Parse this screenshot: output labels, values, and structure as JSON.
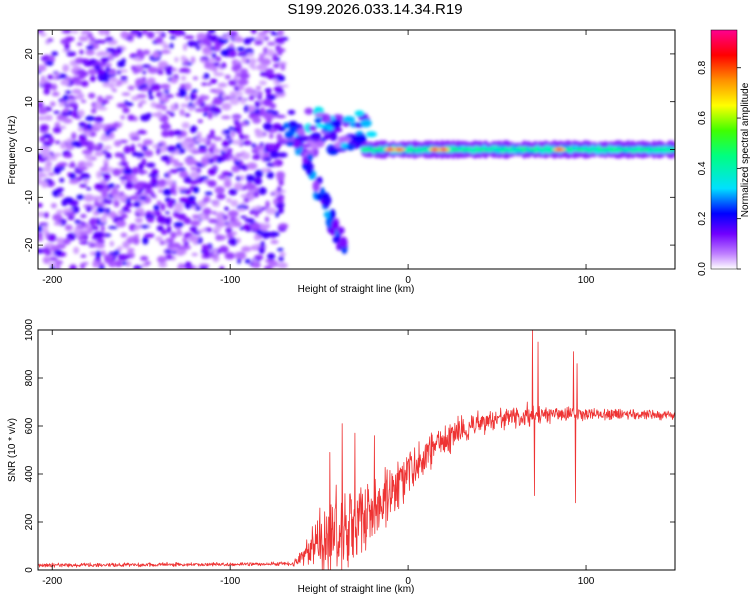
{
  "title": "S199.2026.033.14.34.R19",
  "chart_data": [
    {
      "type": "heatmap",
      "name": "spectrogram",
      "xlabel": "Height of straight line (km)",
      "ylabel": "Frequency (Hz)",
      "xlim": [
        -208,
        150
      ],
      "ylim": [
        -25,
        25
      ],
      "xticks": [
        -200,
        -100,
        0,
        100
      ],
      "yticks": [
        20,
        10,
        0,
        -10,
        -20
      ],
      "colorbar": {
        "label": "Normalized spectral amplitude",
        "range": [
          0,
          0.95
        ],
        "ticks": [
          0.0,
          0.2,
          0.4,
          0.6,
          0.8
        ],
        "tick_labels": [
          "0.0",
          "0.2",
          "0.4",
          "0.6",
          "0.8"
        ],
        "stops": [
          {
            "v": 0.0,
            "color": "#ffffff"
          },
          {
            "v": 0.06,
            "color": "#c080ff"
          },
          {
            "v": 0.14,
            "color": "#7000ff"
          },
          {
            "v": 0.22,
            "color": "#0000ff"
          },
          {
            "v": 0.32,
            "color": "#00e0ff"
          },
          {
            "v": 0.45,
            "color": "#00ff80"
          },
          {
            "v": 0.55,
            "color": "#40ff00"
          },
          {
            "v": 0.65,
            "color": "#ffff00"
          },
          {
            "v": 0.75,
            "color": "#ff9000"
          },
          {
            "v": 0.85,
            "color": "#ff0000"
          },
          {
            "v": 0.95,
            "color": "#ff0090"
          }
        ]
      },
      "features": {
        "noise_region_x": [
          -208,
          -70
        ],
        "scattered_blobs_x": [
          -70,
          -20
        ],
        "descending_branch": {
          "x": [
            -62,
            -35
          ],
          "freq": [
            2,
            -22
          ]
        },
        "tone_line": {
          "x": [
            -25,
            150
          ],
          "freq": 0,
          "bright_at_x": [
            -10,
            -5,
            15,
            20,
            85
          ]
        }
      }
    },
    {
      "type": "line",
      "name": "snr",
      "xlabel": "Height of straight line (km)",
      "ylabel": "SNR (10 * v/v)",
      "xlim": [
        -208,
        150
      ],
      "ylim": [
        0,
        1000
      ],
      "xticks": [
        -200,
        -100,
        0,
        100
      ],
      "yticks": [
        0,
        200,
        400,
        600,
        800,
        1000
      ],
      "color": "#ee3333",
      "profile": [
        {
          "x": -208,
          "y": 20,
          "amp": 10
        },
        {
          "x": -65,
          "y": 25,
          "amp": 10
        },
        {
          "x": -58,
          "y": 60,
          "amp": 50
        },
        {
          "x": -50,
          "y": 120,
          "amp": 180
        },
        {
          "x": -40,
          "y": 160,
          "amp": 250
        },
        {
          "x": -30,
          "y": 190,
          "amp": 220
        },
        {
          "x": -20,
          "y": 260,
          "amp": 180
        },
        {
          "x": -10,
          "y": 330,
          "amp": 140
        },
        {
          "x": 0,
          "y": 410,
          "amp": 110
        },
        {
          "x": 10,
          "y": 480,
          "amp": 90
        },
        {
          "x": 20,
          "y": 540,
          "amp": 80
        },
        {
          "x": 30,
          "y": 580,
          "amp": 70
        },
        {
          "x": 40,
          "y": 610,
          "amp": 60
        },
        {
          "x": 60,
          "y": 640,
          "amp": 55
        },
        {
          "x": 80,
          "y": 650,
          "amp": 50
        },
        {
          "x": 100,
          "y": 650,
          "amp": 30
        },
        {
          "x": 150,
          "y": 645,
          "amp": 25
        }
      ],
      "spikes": [
        {
          "x": -44,
          "y": 490
        },
        {
          "x": -37,
          "y": 610
        },
        {
          "x": -30,
          "y": 570
        },
        {
          "x": -19,
          "y": 560
        },
        {
          "x": 67,
          "y": 700
        },
        {
          "x": 70,
          "y": 1000
        },
        {
          "x": 71,
          "y": 310
        },
        {
          "x": 73,
          "y": 950
        },
        {
          "x": 93,
          "y": 910
        },
        {
          "x": 94,
          "y": 280
        },
        {
          "x": 95,
          "y": 860
        }
      ]
    }
  ]
}
